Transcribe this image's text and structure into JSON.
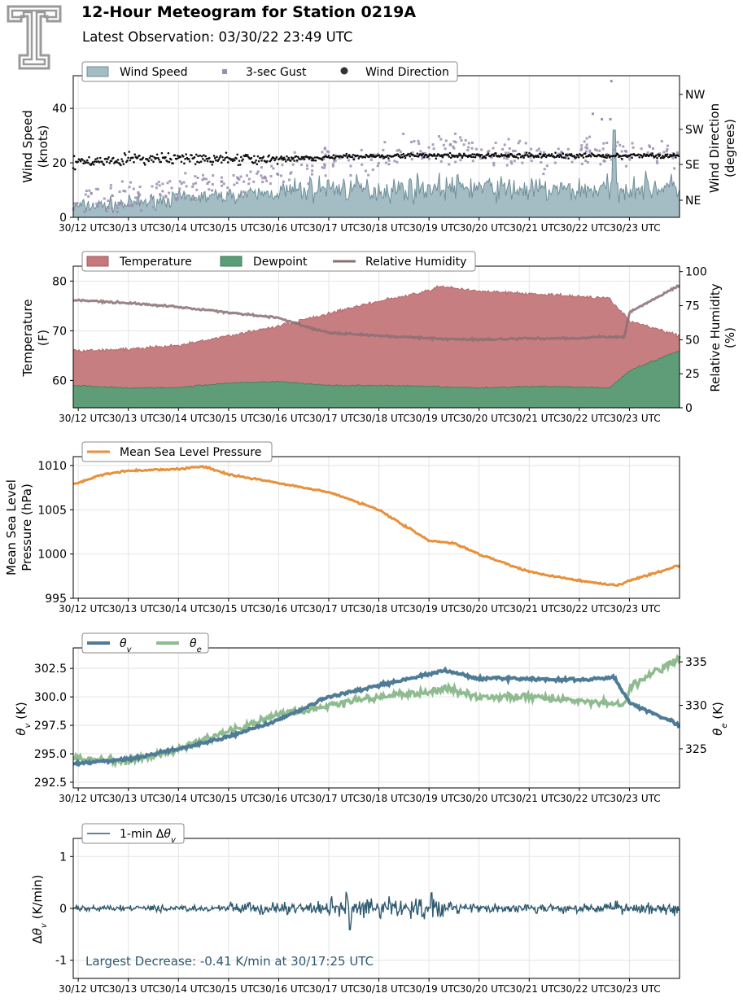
{
  "header": {
    "title": "12-Hour Meteogram for Station 0219A",
    "subtitle": "Latest Observation: 03/30/22 23:49 UTC"
  },
  "colors": {
    "wind_fill": "#a4bcc4",
    "wind_line": "#6f8f98",
    "gust": "#9b8db0",
    "direction": "#111111",
    "temperature": "#c5787a",
    "dewpoint": "#5a9e78",
    "rh": "#8a6f72",
    "pressure": "#e8903a",
    "theta_v": "#4e7b95",
    "theta_e": "#8fbb90",
    "dtheta": "#2e5a70"
  },
  "x_tick_labels": [
    "30/12 UTC",
    "30/13 UTC",
    "30/14 UTC",
    "30/15 UTC",
    "30/16 UTC",
    "30/17 UTC",
    "30/18 UTC",
    "30/19 UTC",
    "30/20 UTC",
    "30/21 UTC",
    "30/22 UTC",
    "30/23 UTC"
  ],
  "chart_data": [
    {
      "type": "area",
      "ylabel": [
        "Wind Speed",
        "(knots)"
      ],
      "y2label": [
        "Wind Direction",
        "(degrees)"
      ],
      "ylim": [
        0,
        52
      ],
      "yticks": [
        "0",
        "20",
        "40"
      ],
      "y2ticks": [
        "NE",
        "SE",
        "SW",
        "NW"
      ],
      "legend": [
        "Wind Speed",
        "3-sec Gust",
        "Wind Direction"
      ],
      "series": [
        {
          "name": "Wind Speed",
          "x": [
            12,
            13,
            14,
            15,
            16,
            17,
            18,
            19,
            20,
            21,
            22,
            23,
            24
          ],
          "values": [
            4,
            5,
            7,
            8,
            9,
            11,
            10,
            11,
            11,
            10,
            10,
            11,
            11
          ]
        },
        {
          "name": "3-sec Gust",
          "x": [
            12,
            13,
            14,
            15,
            16,
            17,
            18,
            19,
            20,
            21,
            22,
            23,
            24
          ],
          "values": [
            7,
            8,
            11,
            14,
            16,
            20,
            22,
            24,
            24,
            23,
            23,
            24,
            24
          ]
        },
        {
          "name": "Wind Direction",
          "x": [
            12,
            13,
            14,
            15,
            16,
            17,
            18,
            19,
            20,
            21,
            22,
            23,
            24
          ],
          "values": [
            140,
            150,
            150,
            150,
            150,
            155,
            160,
            160,
            160,
            160,
            160,
            160,
            160
          ]
        }
      ],
      "peak_gust": 50
    },
    {
      "type": "area",
      "ylabel": [
        "Temperature",
        "(F)"
      ],
      "y2label": [
        "Relative Humidity",
        "(%)"
      ],
      "ylim": [
        54.5,
        83
      ],
      "yticks": [
        "60",
        "70",
        "80"
      ],
      "y2ticks": [
        "0",
        "25",
        "50",
        "75",
        "100"
      ],
      "legend": [
        "Temperature",
        "Dewpoint",
        "Relative Humidity"
      ],
      "series": [
        {
          "name": "Temperature",
          "x": [
            12,
            13,
            14,
            15,
            16,
            17,
            18,
            19,
            19.2,
            20,
            21,
            22,
            22.6,
            23,
            24
          ],
          "values": [
            66,
            66.3,
            67,
            69,
            71,
            73.5,
            76,
            78,
            79,
            78,
            77.5,
            77,
            76.5,
            72,
            69
          ]
        },
        {
          "name": "Dewpoint",
          "x": [
            12,
            13,
            14,
            15,
            16,
            17,
            18,
            19,
            20,
            21,
            22,
            22.6,
            23,
            24
          ],
          "values": [
            59,
            58.5,
            58.6,
            59.5,
            59.8,
            59,
            59,
            58.8,
            58.5,
            58.8,
            58.7,
            58.5,
            62,
            66
          ]
        },
        {
          "name": "Relative Humidity",
          "x": [
            12,
            13,
            14,
            15,
            16,
            16.5,
            17,
            18,
            19,
            20,
            21,
            22,
            22.4,
            22.9,
            23,
            24
          ],
          "values": [
            79,
            77,
            74,
            70,
            66,
            60,
            55,
            53,
            51,
            50,
            51,
            51,
            52,
            52,
            70,
            90
          ]
        }
      ]
    },
    {
      "type": "line",
      "ylabel": [
        "Mean Sea Level",
        "Pressure (hPa)"
      ],
      "ylim": [
        995,
        1011
      ],
      "yticks": [
        "995",
        "1000",
        "1005",
        "1010"
      ],
      "legend": [
        "Mean Sea Level Pressure"
      ],
      "series": [
        {
          "name": "Mean Sea Level Pressure",
          "x": [
            12,
            12.5,
            13,
            14,
            14.5,
            15,
            16,
            17,
            18,
            19,
            19.5,
            20,
            21,
            22,
            22.5,
            22.8,
            23,
            24
          ],
          "values": [
            1008,
            1009,
            1009.4,
            1009.6,
            1009.9,
            1009,
            1008,
            1007,
            1005,
            1001.5,
            1001.2,
            1000,
            998,
            997,
            996.6,
            996.5,
            997,
            998.7
          ]
        }
      ]
    },
    {
      "type": "line",
      "ylabel": [
        "θv (K)"
      ],
      "y2label": [
        "θe (K)"
      ],
      "ylim": [
        292,
        304.3
      ],
      "y2lim": [
        320.5,
        336.6
      ],
      "yticks": [
        "292.5",
        "295.0",
        "297.5",
        "300.0",
        "302.5"
      ],
      "y2ticks": [
        "325",
        "330",
        "335"
      ],
      "legend": [
        "θv",
        "θe"
      ],
      "series": [
        {
          "name": "θv",
          "x": [
            12,
            13,
            14,
            15,
            16,
            17,
            18,
            19,
            19.3,
            20,
            21,
            22,
            22.7,
            23,
            24
          ],
          "values": [
            294.2,
            294.5,
            295.4,
            296.5,
            298,
            300,
            301,
            302,
            302.3,
            301.6,
            301.6,
            301.5,
            301.7,
            299.5,
            297.5
          ]
        },
        {
          "name": "θe",
          "x": [
            12,
            13,
            14,
            15,
            16,
            17,
            18,
            19,
            19.3,
            20,
            21,
            22,
            22.9,
            23,
            24
          ],
          "values": [
            324,
            323.5,
            325,
            327,
            329,
            330,
            331,
            331.5,
            332,
            331,
            331,
            330.5,
            330,
            332,
            335.5
          ]
        }
      ]
    },
    {
      "type": "line",
      "ylabel": [
        "Δθv (K/min)"
      ],
      "ylim": [
        -1.35,
        1.35
      ],
      "yticks": [
        "-1",
        "0",
        "1"
      ],
      "legend": [
        "1-min Δθv"
      ],
      "series": [
        {
          "name": "1-min Δθv",
          "x": [
            12,
            13,
            14,
            15,
            16,
            17,
            17.42,
            18,
            19,
            20,
            21,
            22,
            23,
            24
          ],
          "values": [
            0,
            0.02,
            0,
            0.05,
            0.05,
            0.1,
            -0.41,
            0.15,
            0.1,
            0.05,
            0.05,
            0.05,
            0.05,
            0
          ]
        }
      ],
      "annotation": "Largest Decrease: -0.41 K/min at 30/17:25 UTC"
    }
  ]
}
